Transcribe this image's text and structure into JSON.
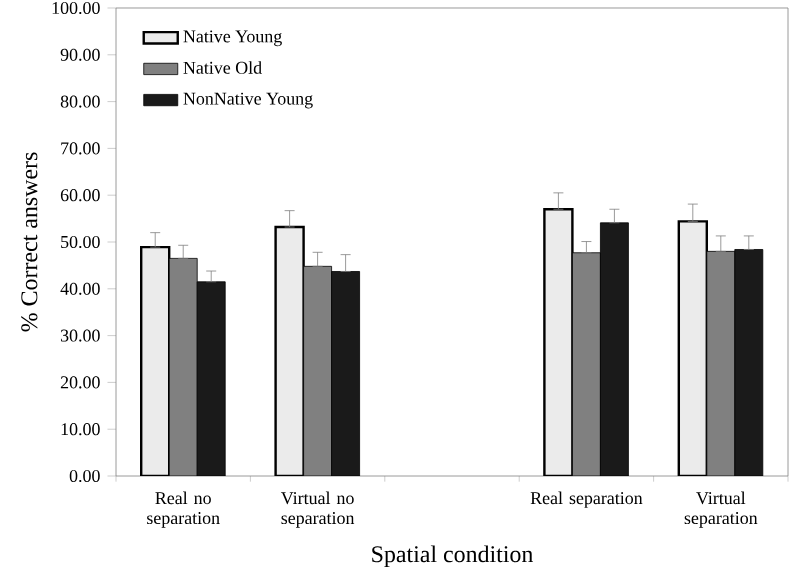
{
  "chart_data": {
    "type": "bar",
    "xlabel": "Spatial condition",
    "ylabel": "% Correct answers",
    "categories": [
      "Real no separation",
      "Virtual no separation",
      null,
      "Real separation",
      "Virtual separation"
    ],
    "series": [
      {
        "name": "Native Young",
        "color": "#ebebeb",
        "values": [
          48.9,
          53.2,
          null,
          57.0,
          54.4
        ],
        "errors": [
          [
            48.9,
            52.0
          ],
          [
            53.2,
            56.7
          ],
          null,
          [
            57.0,
            60.5
          ],
          [
            54.4,
            58.1
          ]
        ]
      },
      {
        "name": "Native Old",
        "color": "#808080",
        "values": [
          46.5,
          44.8,
          null,
          47.7,
          48.0
        ],
        "errors": [
          [
            46.5,
            49.3
          ],
          [
            44.8,
            47.8
          ],
          null,
          [
            47.7,
            50.1
          ],
          [
            48.0,
            51.3
          ]
        ]
      },
      {
        "name": "NonNative Young",
        "color": "#1a1a1a",
        "values": [
          41.5,
          43.7,
          null,
          54.1,
          48.4
        ],
        "errors": [
          [
            41.5,
            43.8
          ],
          [
            43.7,
            47.3
          ],
          null,
          [
            54.1,
            57.0
          ],
          [
            48.4,
            51.3
          ]
        ]
      }
    ],
    "ylim": [
      0,
      100
    ],
    "yticks": [
      {
        "value": 0,
        "label": "0.00"
      },
      {
        "value": 10,
        "label": "10.00"
      },
      {
        "value": 20,
        "label": "20.00"
      },
      {
        "value": 30,
        "label": "30.00"
      },
      {
        "value": 40,
        "label": "40.00"
      },
      {
        "value": 50,
        "label": "50.00"
      },
      {
        "value": 60,
        "label": "60.00"
      },
      {
        "value": 70,
        "label": "70.00"
      },
      {
        "value": 80,
        "label": "80.00"
      },
      {
        "value": 90,
        "label": "90.00"
      },
      {
        "value": 100,
        "label": "100.00"
      }
    ],
    "grid": false,
    "legend": "top left"
  }
}
